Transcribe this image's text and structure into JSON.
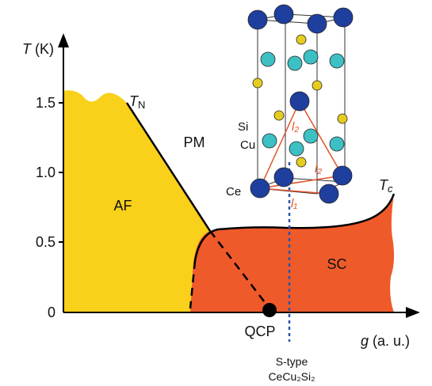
{
  "axes": {
    "y_symbol": "T",
    "y_unit": "(K)",
    "x_symbol": "g",
    "x_unit": "(a. u.)",
    "yticks": [
      "0",
      "0.5",
      "1.0",
      "1.5"
    ]
  },
  "regions": {
    "af": "AF",
    "pm": "PM",
    "sc": "SC"
  },
  "labels": {
    "tn": "T",
    "tn_sub": "N",
    "tc": "T",
    "tc_sub": "c",
    "qcp": "QCP",
    "s_type": "S-type",
    "compound": "CeCu₂Si₂"
  },
  "crystal": {
    "si": "Si",
    "cu": "Cu",
    "ce": "Ce",
    "l2_a": "l₂",
    "l2_b": "l₂",
    "l1": "l₁"
  }
}
